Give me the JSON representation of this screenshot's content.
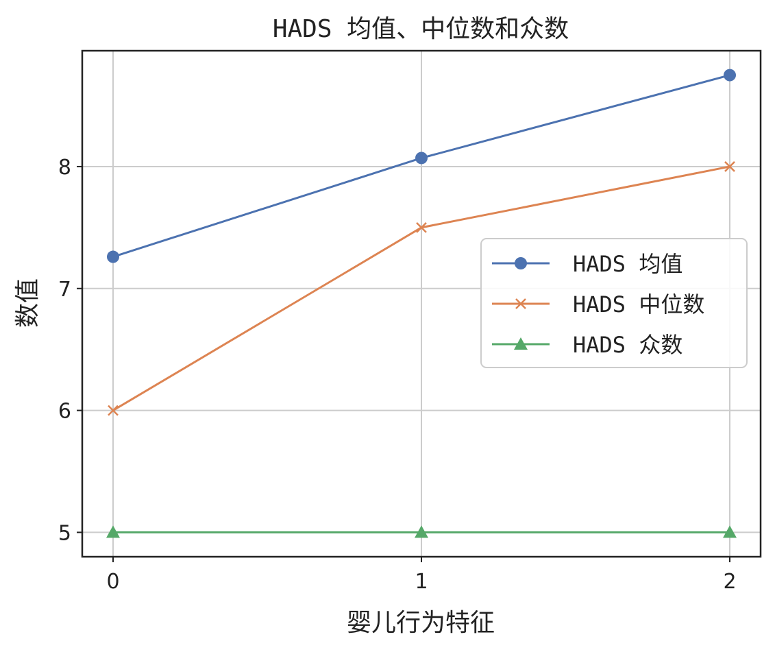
{
  "chart_data": {
    "type": "line",
    "title": "HADS 均值、中位数和众数",
    "xlabel": "婴儿行为特征",
    "ylabel": "数值",
    "x": [
      0,
      1,
      2
    ],
    "x_ticks": [
      "0",
      "1",
      "2"
    ],
    "y_ticks": [
      "5",
      "6",
      "7",
      "8"
    ],
    "xlim": [
      -0.1,
      2.1
    ],
    "ylim": [
      4.8,
      8.95
    ],
    "grid": true,
    "legend_position": "center-right",
    "series": [
      {
        "name": "HADS 均值",
        "values": [
          7.26,
          8.07,
          8.75
        ],
        "color": "#4c72b0",
        "marker": "circle"
      },
      {
        "name": "HADS 中位数",
        "values": [
          6.0,
          7.5,
          8.0
        ],
        "color": "#dd8452",
        "marker": "x"
      },
      {
        "name": "HADS 众数",
        "values": [
          5.0,
          5.0,
          5.0
        ],
        "color": "#55a868",
        "marker": "triangle"
      }
    ]
  }
}
